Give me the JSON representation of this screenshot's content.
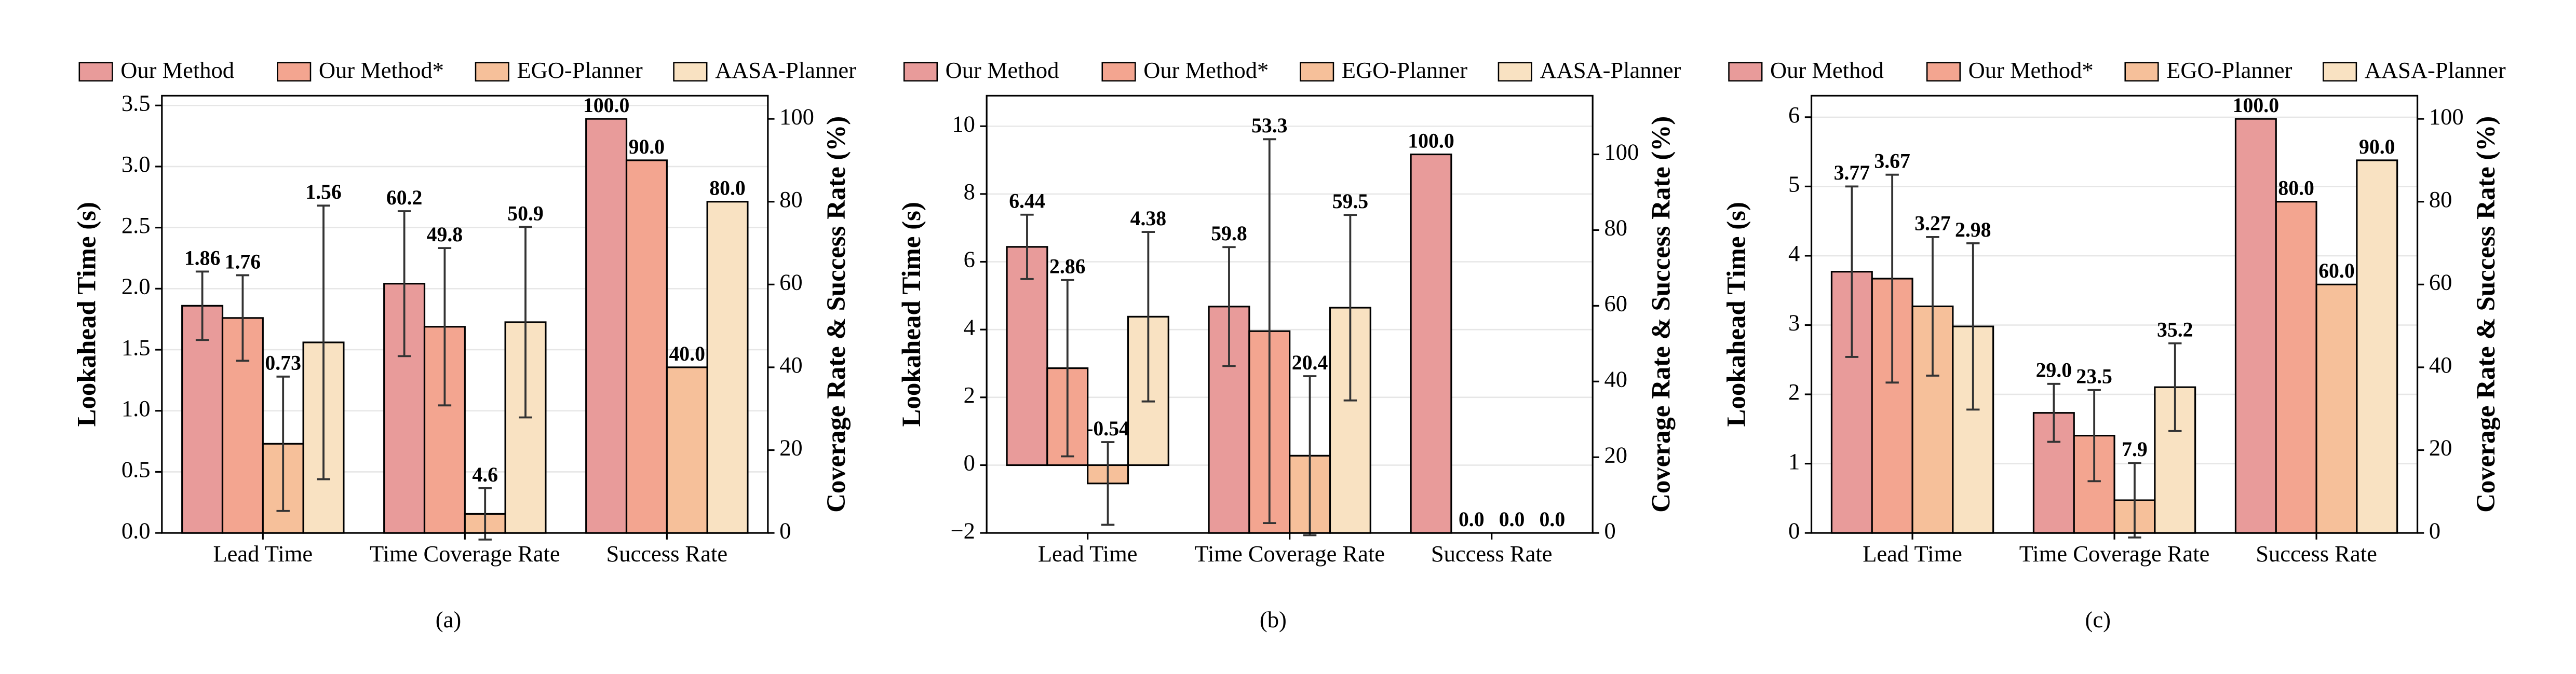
{
  "chart_data": [
    {
      "type": "bar",
      "label": "(a)",
      "ylabel": "Lookahead Time (s)",
      "y2label": "Coverage Rate & Success Rate (%)",
      "categories": [
        "Lead Time",
        "Time Coverage Rate",
        "Success Rate"
      ],
      "category_axes": [
        "y",
        "y2",
        "y2"
      ],
      "ylim": [
        0,
        3.58
      ],
      "y2lim": [
        0,
        105.6
      ],
      "grid": true,
      "yticks": [
        {
          "value": 0,
          "label": "0.0"
        },
        {
          "value": 0.5,
          "label": "0.5"
        },
        {
          "value": 1,
          "label": "1.0"
        },
        {
          "value": 1.5,
          "label": "1.5"
        },
        {
          "value": 2,
          "label": "2.0"
        },
        {
          "value": 2.5,
          "label": "2.5"
        },
        {
          "value": 3,
          "label": "3.0"
        },
        {
          "value": 3.5,
          "label": "3.5"
        }
      ],
      "y2ticks": [
        0,
        20,
        40,
        60,
        80,
        100
      ],
      "series": [
        {
          "name": "Our Method",
          "color": "#e89b9a",
          "values": [
            1.86,
            60.2,
            100
          ],
          "value_labels": [
            "1.86",
            "60.2",
            "100.0"
          ],
          "errors": [
            0.28,
            17.5,
            0
          ]
        },
        {
          "name": "Our Method*",
          "color": "#f3a590",
          "values": [
            1.76,
            49.8,
            90
          ],
          "value_labels": [
            "1.76",
            "49.8",
            "90.0"
          ],
          "errors": [
            0.35,
            19,
            0
          ]
        },
        {
          "name": "EGO-Planner",
          "color": "#f6c09a",
          "values": [
            0.73,
            4.6,
            40
          ],
          "value_labels": [
            "0.73",
            "4.6",
            "40.0"
          ],
          "errors": [
            0.55,
            6.2,
            0
          ]
        },
        {
          "name": "AASA-Planner",
          "color": "#f9e2c2",
          "values": [
            1.56,
            50.9,
            80
          ],
          "value_labels": [
            "1.56",
            "50.9",
            "80.0"
          ],
          "errors": [
            1.12,
            23,
            0
          ]
        }
      ]
    },
    {
      "type": "bar",
      "label": "(b)",
      "ylabel": "Lookahead Time (s)",
      "y2label": "Coverage Rate & Success Rate (%)",
      "categories": [
        "Lead Time",
        "Time Coverage Rate",
        "Success Rate"
      ],
      "category_axes": [
        "y",
        "y2",
        "y2"
      ],
      "ylim": [
        -2,
        10.9
      ],
      "y2lim": [
        0,
        115.5
      ],
      "grid": true,
      "yticks": [
        {
          "value": -2,
          "label": "−2"
        },
        0,
        2,
        4,
        6,
        8,
        10
      ],
      "y2ticks": [
        0,
        20,
        40,
        60,
        80,
        100
      ],
      "series": [
        {
          "name": "Our Method",
          "color": "#e89b9a",
          "values": [
            6.44,
            59.8,
            100
          ],
          "value_labels": [
            "6.44",
            "59.8",
            "100.0"
          ],
          "errors": [
            0.95,
            15.7,
            0
          ]
        },
        {
          "name": "Our Method*",
          "color": "#f3a590",
          "values": [
            2.86,
            53.3,
            0
          ],
          "value_labels": [
            "2.86",
            "53.3",
            "0.0"
          ],
          "errors": [
            2.6,
            50.7,
            0
          ]
        },
        {
          "name": "EGO-Planner",
          "color": "#f6c09a",
          "values": [
            -0.54,
            20.4,
            0
          ],
          "value_labels": [
            "-0.54",
            "20.4",
            "0.0"
          ],
          "errors": [
            1.22,
            21,
            0
          ]
        },
        {
          "name": "AASA-Planner",
          "color": "#f9e2c2",
          "values": [
            4.38,
            59.5,
            0
          ],
          "value_labels": [
            "4.38",
            "59.5",
            "0.0"
          ],
          "errors": [
            2.5,
            24.5,
            0
          ]
        }
      ]
    },
    {
      "type": "bar",
      "label": "(c)",
      "ylabel": "Lookahead Time (s)",
      "y2label": "Coverage Rate & Success Rate (%)",
      "categories": [
        "Lead Time",
        "Time Coverage Rate",
        "Success Rate"
      ],
      "category_axes": [
        "y",
        "y2",
        "y2"
      ],
      "ylim": [
        0,
        6.31
      ],
      "y2lim": [
        0,
        105.6
      ],
      "grid": true,
      "yticks": [
        0,
        1,
        2,
        3,
        4,
        5,
        6
      ],
      "y2ticks": [
        0,
        20,
        40,
        60,
        80,
        100
      ],
      "series": [
        {
          "name": "Our Method",
          "color": "#e89b9a",
          "values": [
            3.77,
            29.0,
            100
          ],
          "value_labels": [
            "3.77",
            "29.0",
            "100.0"
          ],
          "errors": [
            1.23,
            7,
            0
          ]
        },
        {
          "name": "Our Method*",
          "color": "#f3a590",
          "values": [
            3.67,
            23.5,
            80
          ],
          "value_labels": [
            "3.67",
            "23.5",
            "80.0"
          ],
          "errors": [
            1.5,
            11,
            0
          ]
        },
        {
          "name": "EGO-Planner",
          "color": "#f6c09a",
          "values": [
            3.27,
            7.9,
            60
          ],
          "value_labels": [
            "3.27",
            "7.9",
            "60.0"
          ],
          "errors": [
            1.0,
            9,
            0
          ]
        },
        {
          "name": "AASA-Planner",
          "color": "#f9e2c2",
          "values": [
            2.98,
            35.2,
            90
          ],
          "value_labels": [
            "2.98",
            "35.2",
            "90.0"
          ],
          "errors": [
            1.2,
            10.6,
            0
          ]
        }
      ]
    }
  ]
}
